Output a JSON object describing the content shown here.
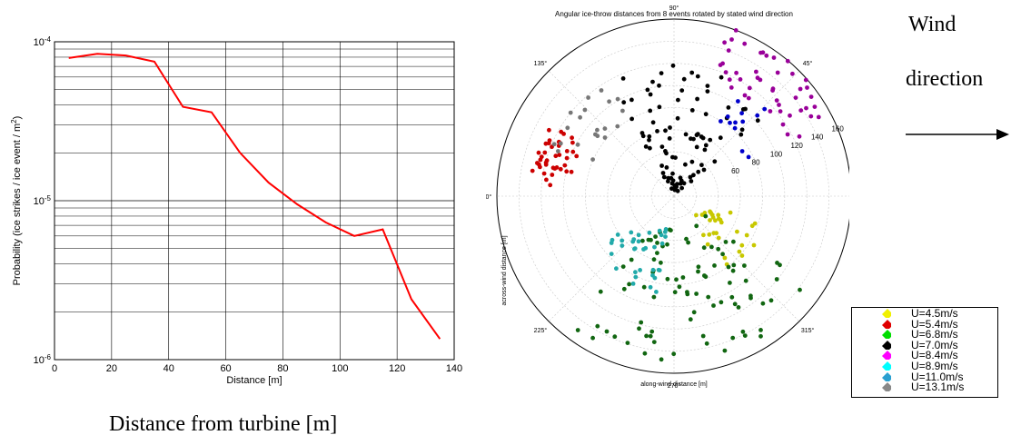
{
  "chart_data": [
    {
      "type": "line",
      "title": "",
      "xlabel": "Distance [m]",
      "ylabel": "Probability (ice strikes / ice event / m²)",
      "ylabel_main": "Probability (ice strikes / ice event / m",
      "ylabel_sup": "2",
      "ylabel_close": ")",
      "x_ticks": [
        "0",
        "20",
        "40",
        "60",
        "80",
        "100",
        "120",
        "140"
      ],
      "y_ticks": [
        {
          "base": "10",
          "exp": "-4"
        },
        {
          "base": "10",
          "exp": "-5"
        },
        {
          "base": "10",
          "exp": "-6"
        }
      ],
      "xlim": [
        0,
        140
      ],
      "ylim": [
        1e-06,
        0.0001
      ],
      "yscale": "log",
      "grid": true,
      "series": [
        {
          "color": "#ff0000",
          "x": [
            5,
            15,
            25,
            35,
            45,
            55,
            65,
            75,
            85,
            95,
            105,
            115,
            125,
            135
          ],
          "y": [
            7.9e-05,
            8.4e-05,
            8.2e-05,
            7.5e-05,
            3.9e-05,
            3.6e-05,
            2e-05,
            1.3e-05,
            9.5e-06,
            7.3e-06,
            6e-06,
            6.6e-06,
            2.4e-06,
            1.35e-06
          ]
        }
      ]
    },
    {
      "type": "scatter",
      "projection": "polar",
      "title": "Angular ice-throw distances from 8 events rotated by stated wind direction",
      "xlabel": "along-wind distance [m]",
      "ylabel": "across-wind distance [m]",
      "angle_labels": [
        {
          "deg": 0,
          "text": "0°"
        },
        {
          "deg": 45,
          "text": "45°"
        },
        {
          "deg": 90,
          "text": "90°"
        },
        {
          "deg": 135,
          "text": "135°"
        },
        {
          "deg": 180,
          "text": "180°"
        },
        {
          "deg": 225,
          "text": "225°"
        },
        {
          "deg": 270,
          "text": "270°"
        },
        {
          "deg": 315,
          "text": "315°"
        }
      ],
      "radial_ticks": [
        {
          "r": 20,
          "text": ""
        },
        {
          "r": 40,
          "text": ""
        },
        {
          "r": 60,
          "text": "60"
        },
        {
          "r": 80,
          "text": "80"
        },
        {
          "r": 100,
          "text": "100"
        },
        {
          "r": 120,
          "text": "120"
        },
        {
          "r": 140,
          "text": "140"
        },
        {
          "r": 160,
          "text": "160"
        }
      ],
      "rmax": 160,
      "legend_position": "lower-right",
      "series": [
        {
          "name": "U=4.5m/s",
          "color": "#f0f000",
          "marker_color": "#c8c800",
          "count": 30,
          "theta_range": [
            300,
            345
          ],
          "r_range": [
            25,
            85
          ]
        },
        {
          "name": "U=5.4m/s",
          "color": "#e00000",
          "marker_color": "#cc0000",
          "count": 40,
          "theta_range": [
            150,
            175
          ],
          "r_range": [
            95,
            130
          ]
        },
        {
          "name": "U=6.8m/s",
          "color": "#00dd00",
          "marker_color": "#116611",
          "count": 90,
          "theta_range": [
            230,
            330
          ],
          "r_range": [
            30,
            150
          ]
        },
        {
          "name": "U=7.0m/s",
          "color": "#000000",
          "marker_color": "#000000",
          "count": 90,
          "theta_range": [
            40,
            120
          ],
          "r_range": [
            5,
            120
          ]
        },
        {
          "name": "U=8.4m/s",
          "color": "#ff00ff",
          "marker_color": "#990099",
          "count": 45,
          "theta_range": [
            25,
            75
          ],
          "r_range": [
            110,
            160
          ]
        },
        {
          "name": "U=8.9m/s",
          "color": "#00ffff",
          "marker_color": "#22aaaa",
          "count": 35,
          "theta_range": [
            210,
            260
          ],
          "r_range": [
            30,
            90
          ]
        },
        {
          "name": "U=11.0m/s",
          "color": "#2aa0d0",
          "marker_color": "#0000cc",
          "count": 12,
          "theta_range": [
            25,
            60
          ],
          "r_range": [
            70,
            115
          ]
        },
        {
          "name": "U=13.1m/s",
          "color": "#888888",
          "marker_color": "#777777",
          "count": 20,
          "theta_range": [
            120,
            160
          ],
          "r_range": [
            80,
            125
          ]
        }
      ]
    }
  ],
  "annotations": {
    "wind_line1": "Wind",
    "wind_line2": "direction",
    "bottom_caption": "Distance from turbine [m]"
  }
}
